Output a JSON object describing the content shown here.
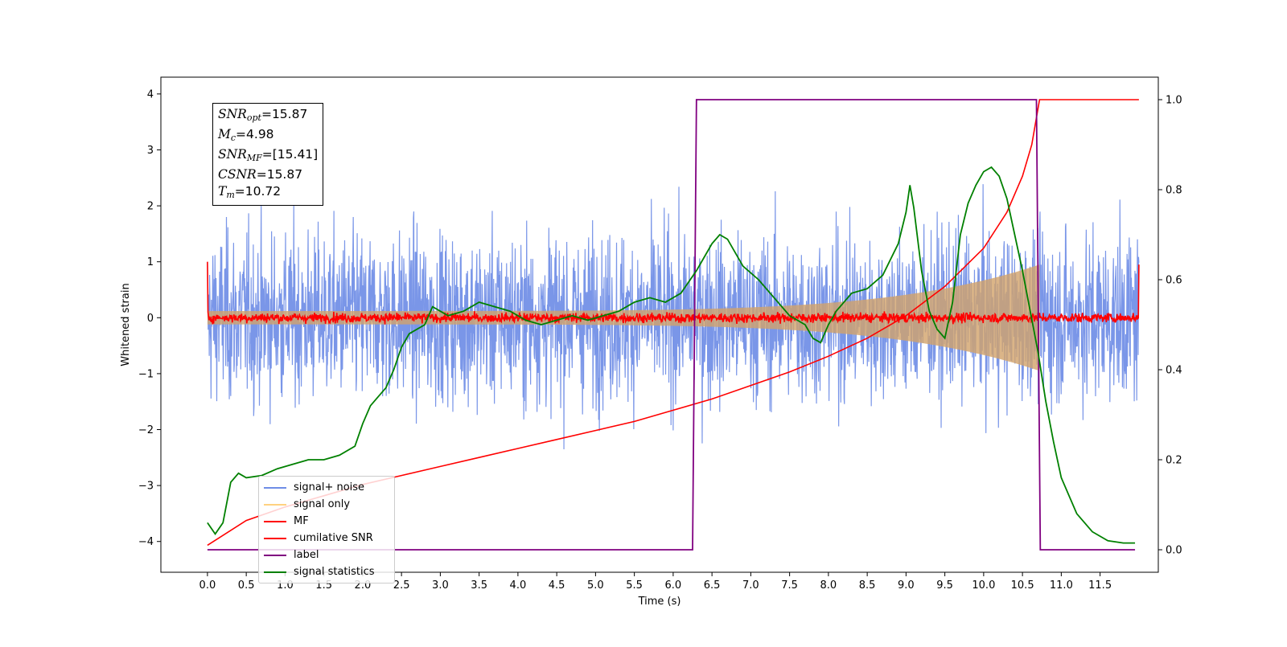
{
  "chart_data": {
    "type": "line",
    "xlabel": "Time (s)",
    "ylabel": "Whitened strain",
    "xlim": [
      -0.6,
      12.25
    ],
    "ylim": [
      -4.55,
      4.3
    ],
    "ylim_right": [
      -0.05,
      1.05
    ],
    "x_ticks": [
      "0.0",
      "0.5",
      "1.0",
      "1.5",
      "2.0",
      "2.5",
      "3.0",
      "3.5",
      "4.0",
      "4.5",
      "5.0",
      "5.5",
      "6.0",
      "6.5",
      "7.0",
      "7.5",
      "8.0",
      "8.5",
      "9.0",
      "9.5",
      "10.0",
      "10.5",
      "11.0",
      "11.5"
    ],
    "y_ticks": [
      "−4",
      "−3",
      "−2",
      "−1",
      "0",
      "1",
      "2",
      "3",
      "4"
    ],
    "y_ticks_right": [
      "0.0",
      "0.2",
      "0.4",
      "0.6",
      "0.8",
      "1.0"
    ],
    "grid": false,
    "legend_position": "lower-left",
    "annotation": {
      "snr_opt": "=15.87",
      "mc": "=4.98",
      "snr_mf": "=[15.41]",
      "csnr": "=15.87",
      "tm": "=10.72"
    },
    "series": [
      {
        "name": "signal+ noise",
        "color": "#6f8de6",
        "axis": "left",
        "envelope_upper": 2.3,
        "envelope_lower": -2.3,
        "range": [
          0.0,
          12.0
        ]
      },
      {
        "name": "signal only",
        "color": "#ffa500",
        "axis": "left",
        "amplitude_start": 0.12,
        "amplitude_end": 0.95,
        "t_end": 10.72
      },
      {
        "name": "MF",
        "color": "#ff0000",
        "axis": "left",
        "baseline": 0.0,
        "range": [
          0.0,
          12.0
        ]
      },
      {
        "name": "cumilative SNR",
        "color": "#ff0000",
        "axis": "right",
        "x": [
          0.0,
          0.5,
          1.0,
          1.5,
          2.0,
          2.5,
          3.0,
          3.5,
          4.0,
          4.5,
          5.0,
          5.5,
          6.0,
          6.5,
          7.0,
          7.5,
          8.0,
          8.5,
          9.0,
          9.5,
          10.0,
          10.3,
          10.5,
          10.62,
          10.72,
          12.0
        ],
        "y": [
          0.01,
          0.065,
          0.095,
          0.12,
          0.145,
          0.165,
          0.185,
          0.205,
          0.225,
          0.245,
          0.265,
          0.285,
          0.31,
          0.335,
          0.365,
          0.395,
          0.43,
          0.47,
          0.52,
          0.585,
          0.67,
          0.75,
          0.83,
          0.9,
          1.0,
          1.0
        ]
      },
      {
        "name": "label",
        "color": "#800080",
        "axis": "right",
        "x": [
          0.0,
          6.25,
          6.3,
          10.68,
          10.73,
          11.95
        ],
        "y": [
          0.0,
          0.0,
          1.0,
          1.0,
          0.0,
          0.0
        ]
      },
      {
        "name": "signal statistics",
        "color": "#008000",
        "axis": "right",
        "x": [
          0.0,
          0.1,
          0.2,
          0.3,
          0.4,
          0.5,
          0.7,
          0.9,
          1.1,
          1.3,
          1.5,
          1.7,
          1.9,
          2.0,
          2.1,
          2.2,
          2.3,
          2.4,
          2.5,
          2.6,
          2.8,
          2.9,
          3.0,
          3.1,
          3.3,
          3.5,
          3.7,
          3.9,
          4.1,
          4.3,
          4.5,
          4.7,
          4.9,
          5.1,
          5.3,
          5.5,
          5.7,
          5.9,
          6.1,
          6.3,
          6.4,
          6.5,
          6.6,
          6.7,
          6.8,
          6.9,
          7.1,
          7.3,
          7.5,
          7.7,
          7.8,
          7.9,
          8.0,
          8.1,
          8.3,
          8.5,
          8.7,
          8.9,
          9.0,
          9.05,
          9.1,
          9.2,
          9.3,
          9.4,
          9.5,
          9.6,
          9.7,
          9.8,
          9.9,
          10.0,
          10.1,
          10.2,
          10.3,
          10.4,
          10.5,
          10.6,
          10.7,
          10.8,
          10.9,
          11.0,
          11.2,
          11.4,
          11.6,
          11.8,
          11.95
        ],
        "y": [
          0.06,
          0.035,
          0.06,
          0.15,
          0.17,
          0.16,
          0.165,
          0.18,
          0.19,
          0.2,
          0.2,
          0.21,
          0.23,
          0.28,
          0.32,
          0.34,
          0.36,
          0.4,
          0.45,
          0.48,
          0.5,
          0.54,
          0.53,
          0.52,
          0.53,
          0.55,
          0.54,
          0.53,
          0.51,
          0.5,
          0.51,
          0.52,
          0.51,
          0.52,
          0.53,
          0.55,
          0.56,
          0.55,
          0.57,
          0.62,
          0.65,
          0.68,
          0.7,
          0.69,
          0.66,
          0.63,
          0.6,
          0.56,
          0.52,
          0.5,
          0.47,
          0.46,
          0.5,
          0.53,
          0.57,
          0.58,
          0.61,
          0.68,
          0.75,
          0.81,
          0.76,
          0.62,
          0.53,
          0.49,
          0.47,
          0.55,
          0.7,
          0.77,
          0.81,
          0.84,
          0.85,
          0.83,
          0.78,
          0.7,
          0.62,
          0.53,
          0.44,
          0.33,
          0.24,
          0.16,
          0.08,
          0.04,
          0.02,
          0.015,
          0.015
        ]
      }
    ]
  }
}
